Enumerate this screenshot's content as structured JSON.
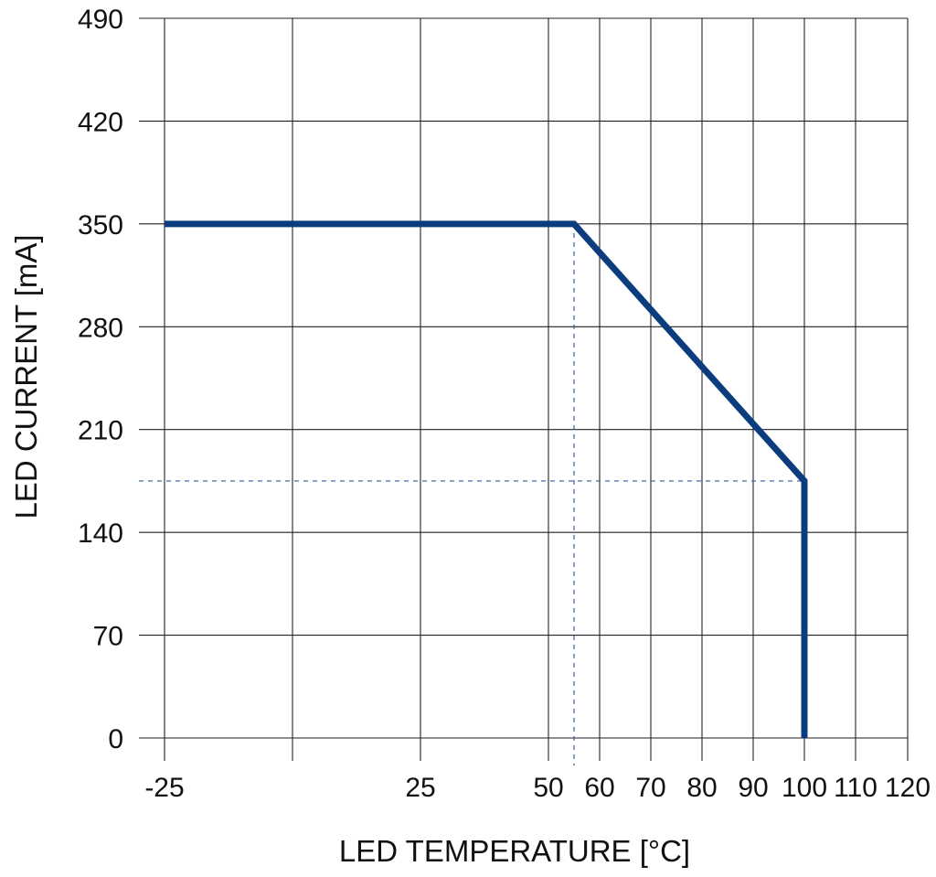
{
  "chart_data": {
    "type": "line",
    "xlabel": "LED TEMPERATURE [°C]",
    "ylabel": "LED CURRENT [mA]",
    "x_ticks": [
      -25,
      0,
      25,
      50,
      55,
      60,
      70,
      80,
      90,
      100,
      110,
      120
    ],
    "x_tick_labels": [
      "-25",
      "",
      "25",
      "50",
      "",
      "60",
      "70",
      "80",
      "90",
      "100",
      "110",
      "120"
    ],
    "y_ticks": [
      0,
      70,
      140,
      210,
      280,
      350,
      420,
      490
    ],
    "y_tick_labels": [
      "0",
      "70",
      "140",
      "210",
      "280",
      "350",
      "420",
      "490"
    ],
    "xlim": [
      -25,
      120
    ],
    "ylim": [
      0,
      490
    ],
    "grid": true,
    "series": [
      {
        "x": [
          -25,
          55,
          100,
          100
        ],
        "y": [
          350,
          350,
          175,
          0
        ],
        "color": "#0a3c7e"
      }
    ],
    "reference_lines": {
      "x": 55,
      "y": 175,
      "color": "#2f5f9a"
    }
  }
}
